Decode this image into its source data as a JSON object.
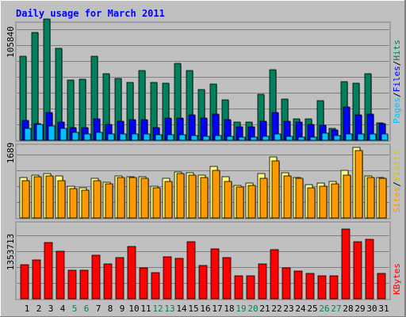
{
  "chart_data": [
    {
      "type": "bar",
      "title": "Daily usage for March 2011",
      "ylabel_max": "105840",
      "right_labels": [
        "Pages",
        "Files",
        "Hits"
      ],
      "ylim": [
        0,
        105840
      ],
      "categories": [
        "1",
        "2",
        "3",
        "4",
        "5",
        "6",
        "7",
        "8",
        "9",
        "10",
        "11",
        "12",
        "13",
        "14",
        "15",
        "16",
        "17",
        "18",
        "19",
        "20",
        "21",
        "22",
        "23",
        "24",
        "25",
        "26",
        "27",
        "28",
        "29",
        "30",
        "31"
      ],
      "series": [
        {
          "name": "Hits",
          "values": [
            75600,
            97300,
            109600,
            82600,
            54500,
            55200,
            75600,
            60400,
            56000,
            52500,
            62700,
            52300,
            51800,
            69600,
            63000,
            45500,
            50500,
            36200,
            16200,
            16200,
            41500,
            64000,
            37500,
            19000,
            19000,
            36000,
            11000,
            52800,
            51200,
            60400,
            16000
          ]
        },
        {
          "name": "Files",
          "values": [
            17800,
            14900,
            24800,
            16600,
            11400,
            11700,
            19000,
            14400,
            16900,
            18300,
            18300,
            11400,
            19800,
            20300,
            22800,
            19900,
            23900,
            18500,
            12400,
            12400,
            17000,
            24900,
            16900,
            16600,
            14200,
            13900,
            9500,
            29800,
            23200,
            23600,
            15000
          ]
        },
        {
          "name": "Pages",
          "values": [
            11000,
            14000,
            13000,
            10500,
            6800,
            6000,
            7000,
            5500,
            5500,
            5500,
            5500,
            4800,
            4900,
            5200,
            4000,
            3800,
            4200,
            3500,
            3000,
            3000,
            3500,
            6000,
            3500,
            3000,
            3000,
            6500,
            4500,
            6000,
            6000,
            6000,
            6000
          ]
        }
      ],
      "colors": {
        "Hits": "#00805c",
        "Files": "#0000ff",
        "Pages": "#00c0ff"
      }
    },
    {
      "type": "bar",
      "ylabel_max": "1689",
      "right_labels": [
        "Sites",
        "Visits"
      ],
      "ylim": [
        0,
        1689
      ],
      "categories": [
        "1",
        "2",
        "3",
        "4",
        "5",
        "6",
        "7",
        "8",
        "9",
        "10",
        "11",
        "12",
        "13",
        "14",
        "15",
        "16",
        "17",
        "18",
        "19",
        "20",
        "21",
        "22",
        "23",
        "24",
        "25",
        "26",
        "27",
        "28",
        "29",
        "30",
        "31"
      ],
      "series": [
        {
          "name": "Visits",
          "values": [
            950,
            1010,
            1040,
            980,
            740,
            700,
            920,
            840,
            990,
            970,
            960,
            740,
            920,
            1080,
            1050,
            1010,
            1210,
            970,
            770,
            820,
            1040,
            1420,
            1050,
            950,
            780,
            810,
            860,
            1120,
            1660,
            980,
            950
          ]
        },
        {
          "name": "Sites",
          "values": [
            870,
            960,
            980,
            880,
            680,
            650,
            870,
            800,
            950,
            940,
            930,
            710,
            860,
            1040,
            1000,
            950,
            1120,
            860,
            720,
            760,
            930,
            1340,
            990,
            920,
            710,
            740,
            800,
            1000,
            1570,
            940,
            920
          ]
        }
      ],
      "colors": {
        "Visits": "#ffff80",
        "Sites": "#ff9900"
      }
    },
    {
      "type": "bar",
      "ylabel_max": "1353713",
      "right_labels": [
        "KBytes"
      ],
      "ylim": [
        0,
        1353713
      ],
      "categories": [
        "1",
        "2",
        "3",
        "4",
        "5",
        "6",
        "7",
        "8",
        "9",
        "10",
        "11",
        "12",
        "13",
        "14",
        "15",
        "16",
        "17",
        "18",
        "19",
        "20",
        "21",
        "22",
        "23",
        "24",
        "25",
        "26",
        "27",
        "28",
        "29",
        "30",
        "31"
      ],
      "series": [
        {
          "name": "KBytes",
          "values": [
            615000,
            695000,
            1005000,
            862000,
            508000,
            518000,
            790000,
            625000,
            745000,
            935000,
            560000,
            475000,
            755000,
            725000,
            1020000,
            595000,
            900000,
            742000,
            415000,
            420000,
            628000,
            890000,
            550000,
            497000,
            453000,
            407000,
            407000,
            1253000,
            1025000,
            1062000,
            460000
          ]
        }
      ],
      "colors": {
        "KBytes": "#ff0000"
      }
    }
  ],
  "x_axis": {
    "labels": [
      "1",
      "2",
      "3",
      "4",
      "5",
      "6",
      "7",
      "8",
      "9",
      "10",
      "11",
      "12",
      "13",
      "14",
      "15",
      "16",
      "17",
      "18",
      "19",
      "20",
      "21",
      "22",
      "23",
      "24",
      "25",
      "26",
      "27",
      "28",
      "29",
      "30",
      "31"
    ],
    "weekend": [
      5,
      6,
      12,
      13,
      19,
      20,
      26,
      27
    ],
    "weekday_color": "#000000",
    "weekend_color": "#00805c"
  },
  "colors": {
    "background": "#c0c0c0",
    "title": "#0000ff",
    "grid": "#808080"
  }
}
